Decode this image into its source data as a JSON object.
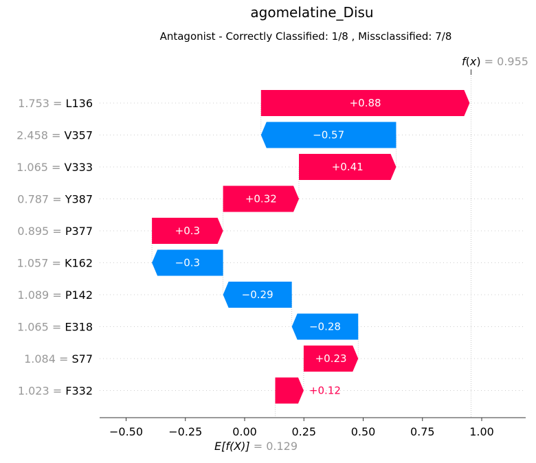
{
  "chart_data": {
    "type": "waterfall",
    "title": "agomelatine_Disu",
    "subtitle": "Antagonist - Correctly Classified: 1/8 , Missclassified: 7/8",
    "fx": {
      "label_func": "f",
      "label_arg": "x",
      "value": "0.955",
      "numeric": 0.955
    },
    "base": {
      "label": "E[f(X)]",
      "value": "0.129",
      "numeric": 0.129
    },
    "xlim": [
      -0.62,
      1.18
    ],
    "xticks": [
      -0.5,
      -0.25,
      0.0,
      0.25,
      0.5,
      0.75,
      1.0
    ],
    "xtick_labels": [
      "−0.50",
      "−0.25",
      "0.00",
      "0.25",
      "0.50",
      "0.75",
      "1.00"
    ],
    "features": [
      {
        "value_text": "1.753 = ",
        "name": "L136",
        "contribution": 0.88,
        "label": "+0.88"
      },
      {
        "value_text": "2.458 = ",
        "name": "V357",
        "contribution": -0.57,
        "label": "−0.57"
      },
      {
        "value_text": "1.065 = ",
        "name": "V333",
        "contribution": 0.41,
        "label": "+0.41"
      },
      {
        "value_text": "0.787 = ",
        "name": "Y387",
        "contribution": 0.32,
        "label": "+0.32"
      },
      {
        "value_text": "0.895 = ",
        "name": "P377",
        "contribution": 0.3,
        "label": "+0.3"
      },
      {
        "value_text": "1.057 = ",
        "name": "K162",
        "contribution": -0.3,
        "label": "−0.3"
      },
      {
        "value_text": "1.089 = ",
        "name": "P142",
        "contribution": -0.29,
        "label": "−0.29"
      },
      {
        "value_text": "1.065 = ",
        "name": "E318",
        "contribution": -0.28,
        "label": "−0.28"
      },
      {
        "value_text": "1.084 = ",
        "name": "S77",
        "contribution": 0.23,
        "label": "+0.23"
      },
      {
        "value_text": "1.023 = ",
        "name": "F332",
        "contribution": 0.12,
        "label": "+0.12"
      }
    ],
    "colors": {
      "positive": "#ff0051",
      "negative": "#008bfb",
      "feature_value": "#999999"
    },
    "grid": "dotted horizontal per feature"
  }
}
